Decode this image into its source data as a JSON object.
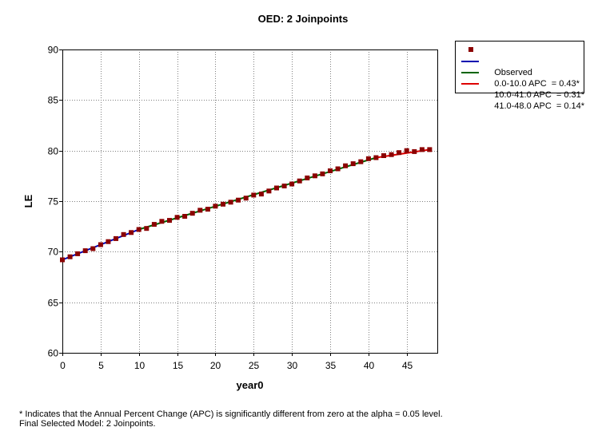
{
  "chart_data": {
    "type": "line",
    "title": "OED: 2 Joinpoints",
    "xlabel": "year0",
    "ylabel": "LE",
    "xlim": [
      0,
      49
    ],
    "ylim": [
      60,
      90
    ],
    "xticks": [
      0,
      5,
      10,
      15,
      20,
      25,
      30,
      35,
      40,
      45
    ],
    "yticks": [
      60,
      65,
      70,
      75,
      80,
      85,
      90
    ],
    "grid": true,
    "legend_position": "top-right outside plot",
    "observed": {
      "name": "Observed",
      "color": "#8b0000",
      "x": [
        0,
        1,
        2,
        3,
        4,
        5,
        6,
        7,
        8,
        9,
        10,
        11,
        12,
        13,
        14,
        15,
        16,
        17,
        18,
        19,
        20,
        21,
        22,
        23,
        24,
        25,
        26,
        27,
        28,
        29,
        30,
        31,
        32,
        33,
        34,
        35,
        36,
        37,
        38,
        39,
        40,
        41,
        42,
        43,
        44,
        45,
        46,
        47,
        48
      ],
      "y": [
        69.2,
        69.5,
        69.8,
        70.1,
        70.3,
        70.7,
        71.0,
        71.3,
        71.7,
        71.9,
        72.2,
        72.3,
        72.7,
        73.0,
        73.1,
        73.4,
        73.5,
        73.8,
        74.1,
        74.2,
        74.5,
        74.7,
        74.9,
        75.1,
        75.3,
        75.6,
        75.7,
        76.0,
        76.3,
        76.5,
        76.7,
        77.0,
        77.3,
        77.5,
        77.7,
        78.0,
        78.2,
        78.5,
        78.7,
        78.9,
        79.2,
        79.3,
        79.5,
        79.6,
        79.8,
        80.0,
        79.9,
        80.1,
        80.1
      ]
    },
    "series": [
      {
        "name": "0.0-10.0 APC  = 0.43*",
        "color": "#0000b0",
        "x": [
          0,
          10
        ],
        "y": [
          69.2,
          72.2
        ]
      },
      {
        "name": "10.0-41.0 APC  = 0.31*",
        "color": "#006400",
        "x": [
          10,
          41
        ],
        "y": [
          72.2,
          79.3
        ]
      },
      {
        "name": "41.0-48.0 APC  = 0.14*",
        "color": "#dd0000",
        "x": [
          41,
          48
        ],
        "y": [
          79.3,
          80.1
        ]
      }
    ]
  },
  "legend": {
    "observed_label": "Observed",
    "seg1_label": "0.0-10.0 APC  = 0.43*",
    "seg2_label": "10.0-41.0 APC  = 0.31*",
    "seg3_label": "41.0-48.0 APC  = 0.14*"
  },
  "footnote": {
    "line1": "* Indicates that the Annual Percent Change (APC) is significantly different from zero at the alpha = 0.05 level.",
    "line2": "Final Selected Model: 2 Joinpoints."
  }
}
